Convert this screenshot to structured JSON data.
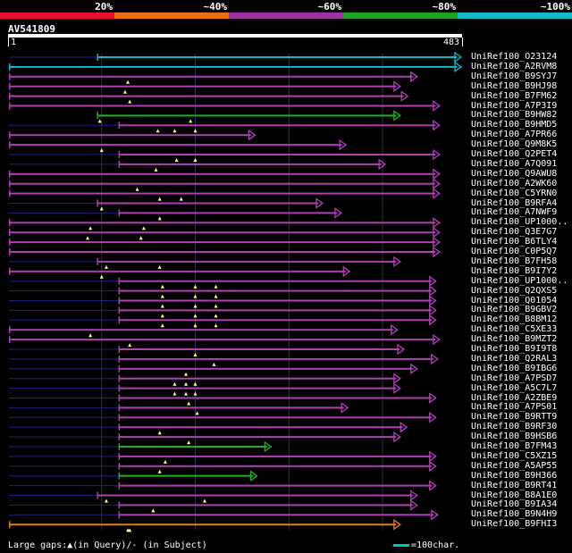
{
  "header": {
    "bands": [
      {
        "label": "20%",
        "color": "#e8102e"
      },
      {
        "label": "~40%",
        "color": "#e87010"
      },
      {
        "label": "~60%",
        "color": "#a030a0"
      },
      {
        "label": "~80%",
        "color": "#20a020"
      },
      {
        "label": "~100%",
        "color": "#10b8c8"
      }
    ]
  },
  "query": {
    "name": "AV541809",
    "start": "1",
    "end": "483",
    "length": 483
  },
  "colors": {
    "purple": "#b040b0",
    "green": "#20b020",
    "cyan": "#10b8c8",
    "orange": "#e87818",
    "thin": "#202080",
    "grid": "#303050",
    "gap_marker": "#ffff80"
  },
  "hits": [
    {
      "name": "UniRef100_O23124",
      "color": "cyan",
      "start": 95,
      "end": 483,
      "thin_start": 1,
      "gaps": []
    },
    {
      "name": "UniRef100_A2RVM8",
      "color": "cyan",
      "start": 1,
      "end": 483,
      "thin_start": 1,
      "gaps": []
    },
    {
      "name": "UniRef100_B9SYJ7",
      "color": "purple",
      "start": 1,
      "end": 436,
      "thin_start": 1,
      "gaps": [
        128
      ]
    },
    {
      "name": "UniRef100_B9HJ98",
      "color": "purple",
      "start": 1,
      "end": 418,
      "thin_start": 1,
      "gaps": [
        125
      ]
    },
    {
      "name": "UniRef100_B7FM62",
      "color": "purple",
      "start": 1,
      "end": 426,
      "thin_start": 1,
      "gaps": [
        130
      ]
    },
    {
      "name": "UniRef100_A7P3I9",
      "color": "purple",
      "start": 1,
      "end": 460,
      "thin_start": 1,
      "gaps": []
    },
    {
      "name": "UniRef100_B9HW82",
      "color": "green",
      "start": 95,
      "end": 418,
      "thin_start": 95,
      "gaps": [
        98,
        195
      ]
    },
    {
      "name": "UniRef100_B9HMD5",
      "color": "purple",
      "start": 118,
      "end": 460,
      "thin_start": 1,
      "gaps": [
        160,
        178,
        200
      ]
    },
    {
      "name": "UniRef100_A7PR66",
      "color": "purple",
      "start": 1,
      "end": 263,
      "thin_start": 1,
      "gaps": []
    },
    {
      "name": "UniRef100_Q9M8K5",
      "color": "purple",
      "start": 1,
      "end": 360,
      "thin_start": 1,
      "gaps": [
        100
      ]
    },
    {
      "name": "UniRef100_Q2PET4",
      "color": "purple",
      "start": 118,
      "end": 460,
      "thin_start": 1,
      "gaps": [
        180,
        200
      ]
    },
    {
      "name": "UniRef100_A7Q091",
      "color": "purple",
      "start": 118,
      "end": 402,
      "thin_start": 1,
      "gaps": [
        158
      ]
    },
    {
      "name": "UniRef100_Q9AWU8",
      "color": "purple",
      "start": 1,
      "end": 460,
      "thin_start": 1,
      "gaps": []
    },
    {
      "name": "UniRef100_A2WK60",
      "color": "purple",
      "start": 1,
      "end": 460,
      "thin_start": 1,
      "gaps": [
        138
      ]
    },
    {
      "name": "UniRef100_C5YRN0",
      "color": "purple",
      "start": 1,
      "end": 460,
      "thin_start": 1,
      "gaps": [
        162,
        185
      ]
    },
    {
      "name": "UniRef100_B9RFA4",
      "color": "purple",
      "start": 95,
      "end": 335,
      "thin_start": 1,
      "gaps": [
        100
      ]
    },
    {
      "name": "UniRef100_A7NWF9",
      "color": "purple",
      "start": 118,
      "end": 355,
      "thin_start": 1,
      "gaps": [
        162
      ]
    },
    {
      "name": "UniRef100_UP1000..",
      "color": "purple",
      "start": 1,
      "end": 460,
      "thin_start": 1,
      "gaps": [
        88,
        145
      ]
    },
    {
      "name": "UniRef100_Q3E7G7",
      "color": "purple",
      "start": 1,
      "end": 460,
      "thin_start": 1,
      "gaps": [
        85,
        142
      ]
    },
    {
      "name": "UniRef100_B6TLY4",
      "color": "purple",
      "start": 1,
      "end": 460,
      "thin_start": 1,
      "gaps": []
    },
    {
      "name": "UniRef100_C0P5Q7",
      "color": "purple",
      "start": 1,
      "end": 460,
      "thin_start": 1,
      "gaps": []
    },
    {
      "name": "UniRef100_B7FH58",
      "color": "purple",
      "start": 95,
      "end": 418,
      "thin_start": 1,
      "gaps": [
        105,
        162
      ]
    },
    {
      "name": "UniRef100_B9I7Y2",
      "color": "purple",
      "start": 1,
      "end": 364,
      "thin_start": 1,
      "gaps": [
        100
      ]
    },
    {
      "name": "UniRef100_UP1000..",
      "color": "purple",
      "start": 118,
      "end": 456,
      "thin_start": 1,
      "gaps": [
        165,
        200,
        222
      ]
    },
    {
      "name": "UniRef100_Q2QXS5",
      "color": "purple",
      "start": 118,
      "end": 456,
      "thin_start": 1,
      "gaps": [
        165,
        200,
        222
      ]
    },
    {
      "name": "UniRef100_Q01054",
      "color": "purple",
      "start": 118,
      "end": 456,
      "thin_start": 1,
      "gaps": [
        165,
        200,
        222
      ]
    },
    {
      "name": "UniRef100_B9GBV2",
      "color": "purple",
      "start": 118,
      "end": 456,
      "thin_start": 1,
      "gaps": [
        165,
        200,
        222
      ]
    },
    {
      "name": "UniRef100_B8BM12",
      "color": "purple",
      "start": 118,
      "end": 456,
      "thin_start": 1,
      "gaps": [
        165,
        200,
        222
      ]
    },
    {
      "name": "UniRef100_C5XE33",
      "color": "purple",
      "start": 1,
      "end": 415,
      "thin_start": 1,
      "gaps": [
        88
      ]
    },
    {
      "name": "UniRef100_B9MZT2",
      "color": "purple",
      "start": 1,
      "end": 460,
      "thin_start": 1,
      "gaps": [
        130
      ]
    },
    {
      "name": "UniRef100_B9I9T8",
      "color": "purple",
      "start": 118,
      "end": 422,
      "thin_start": 1,
      "gaps": [
        200
      ]
    },
    {
      "name": "UniRef100_Q2RAL3",
      "color": "purple",
      "start": 118,
      "end": 458,
      "thin_start": 1,
      "gaps": [
        220
      ]
    },
    {
      "name": "UniRef100_B9IBG6",
      "color": "purple",
      "start": 118,
      "end": 436,
      "thin_start": 1,
      "gaps": [
        190
      ]
    },
    {
      "name": "UniRef100_A7PSD7",
      "color": "purple",
      "start": 118,
      "end": 418,
      "thin_start": 1,
      "gaps": [
        178,
        190,
        200
      ]
    },
    {
      "name": "UniRef100_A5C7L7",
      "color": "purple",
      "start": 118,
      "end": 418,
      "thin_start": 1,
      "gaps": [
        178,
        190,
        200
      ]
    },
    {
      "name": "UniRef100_A2ZBE9",
      "color": "purple",
      "start": 118,
      "end": 456,
      "thin_start": 1,
      "gaps": [
        193
      ]
    },
    {
      "name": "UniRef100_A7PS01",
      "color": "purple",
      "start": 118,
      "end": 362,
      "thin_start": 1,
      "gaps": [
        202
      ]
    },
    {
      "name": "UniRef100_B9RTT9",
      "color": "purple",
      "start": 118,
      "end": 456,
      "thin_start": 1,
      "gaps": []
    },
    {
      "name": "UniRef100_B9RF30",
      "color": "purple",
      "start": 118,
      "end": 425,
      "thin_start": 1,
      "gaps": [
        162
      ]
    },
    {
      "name": "UniRef100_B9HSB6",
      "color": "purple",
      "start": 118,
      "end": 418,
      "thin_start": 1,
      "gaps": [
        193
      ]
    },
    {
      "name": "UniRef100_B7FM43",
      "color": "green",
      "start": 118,
      "end": 280,
      "thin_start": 1,
      "gaps": []
    },
    {
      "name": "UniRef100_C5XZ15",
      "color": "purple",
      "start": 118,
      "end": 456,
      "thin_start": 1,
      "gaps": [
        168
      ]
    },
    {
      "name": "UniRef100_A5AP55",
      "color": "purple",
      "start": 118,
      "end": 456,
      "thin_start": 1,
      "gaps": [
        162
      ]
    },
    {
      "name": "UniRef100_B9H366",
      "color": "green",
      "start": 118,
      "end": 265,
      "thin_start": 1,
      "gaps": []
    },
    {
      "name": "UniRef100_B9RT41",
      "color": "purple",
      "start": 118,
      "end": 456,
      "thin_start": 1,
      "gaps": []
    },
    {
      "name": "UniRef100_B8A1E0",
      "color": "purple",
      "start": 95,
      "end": 436,
      "thin_start": 1,
      "gaps": [
        105,
        210
      ]
    },
    {
      "name": "UniRef100_B9IA34",
      "color": "purple",
      "start": 118,
      "end": 436,
      "thin_start": 1,
      "gaps": [
        155
      ]
    },
    {
      "name": "UniRef100_B9N4H9",
      "color": "purple",
      "start": 118,
      "end": 458,
      "thin_start": 1,
      "gaps": []
    },
    {
      "name": "UniRef100_B9FHI3",
      "color": "orange",
      "start": 1,
      "end": 418,
      "thin_start": 1,
      "gaps": [
        128,
        130
      ]
    }
  ],
  "legend": {
    "text": "Large gaps:▲(in Query)/- (in Subject)",
    "scale_label": "=100char."
  }
}
